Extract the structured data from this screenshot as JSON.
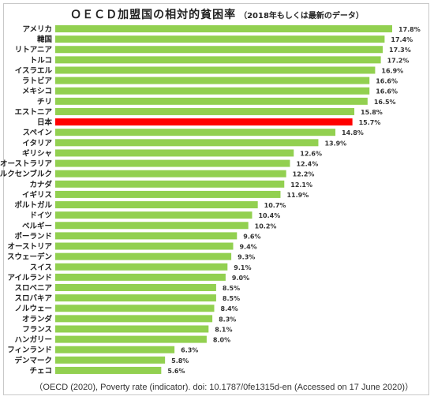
{
  "chart_data": {
    "type": "bar",
    "orientation": "horizontal",
    "title": "ＯＥＣＤ加盟国の相対的貧困率",
    "subtitle": "（2018年もしくは最新のデータ）",
    "xlabel": "",
    "ylabel": "",
    "xlim": [
      0,
      17.8
    ],
    "grid": false,
    "legend": "none",
    "value_suffix": "%",
    "colors": {
      "default": "#92d050",
      "highlight": "#ff0000",
      "highlight_category": "日本"
    },
    "categories": [
      "アメリカ",
      "韓国",
      "リトアニア",
      "トルコ",
      "イスラエル",
      "ラトビア",
      "メキシコ",
      "チリ",
      "エストニア",
      "日本",
      "スペイン",
      "イタリア",
      "ギリシャ",
      "オーストラリア",
      "ルクセンブルク",
      "カナダ",
      "イギリス",
      "ポルトガル",
      "ドイツ",
      "ベルギー",
      "ポーランド",
      "オーストリア",
      "スウェーデン",
      "スイス",
      "アイルランド",
      "スロベニア",
      "スロバキア",
      "ノルウェー",
      "オランダ",
      "フランス",
      "ハンガリー",
      "フィンランド",
      "デンマーク",
      "チェコ"
    ],
    "values": [
      17.8,
      17.4,
      17.3,
      17.2,
      16.9,
      16.6,
      16.6,
      16.5,
      15.8,
      15.7,
      14.8,
      13.9,
      12.6,
      12.4,
      12.2,
      12.1,
      11.9,
      10.7,
      10.4,
      10.2,
      9.6,
      9.4,
      9.3,
      9.1,
      9.0,
      8.5,
      8.5,
      8.4,
      8.3,
      8.1,
      8.0,
      6.3,
      5.8,
      5.6
    ]
  },
  "source": "（OECD (2020), Poverty rate (indicator). doi: 10.1787/0fe1315d-en (Accessed on 17 June 2020)）"
}
